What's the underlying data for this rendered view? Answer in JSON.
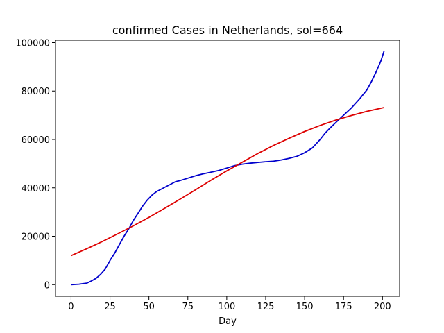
{
  "chart_data": {
    "type": "line",
    "title": "confirmed Cases in Netherlands, sol=664",
    "xlabel": "Day",
    "ylabel": "",
    "xlim": [
      -10,
      211
    ],
    "ylim": [
      -4800,
      101000
    ],
    "xticks": [
      0,
      25,
      50,
      75,
      100,
      125,
      150,
      175,
      200
    ],
    "yticks": [
      0,
      20000,
      40000,
      60000,
      80000,
      100000
    ],
    "grid": false,
    "series": [
      {
        "color": "#0000cc",
        "x": [
          0,
          5,
          10,
          13,
          16,
          19,
          22,
          25,
          28,
          31,
          34,
          37,
          40,
          43,
          46,
          49,
          52,
          55,
          58,
          61,
          64,
          67,
          70,
          75,
          80,
          85,
          90,
          95,
          100,
          105,
          110,
          115,
          120,
          125,
          130,
          135,
          140,
          145,
          150,
          155,
          160,
          163,
          166,
          170,
          175,
          180,
          185,
          190,
          193,
          196,
          199,
          201
        ],
        "y": [
          0,
          200,
          600,
          1500,
          2600,
          4300,
          6500,
          10000,
          13000,
          16500,
          20000,
          23000,
          26500,
          29500,
          32500,
          35000,
          37000,
          38500,
          39500,
          40500,
          41500,
          42500,
          43000,
          44000,
          45000,
          45800,
          46500,
          47200,
          48200,
          49200,
          49800,
          50200,
          50500,
          50800,
          51000,
          51500,
          52200,
          53000,
          54500,
          56500,
          60000,
          62500,
          64500,
          67000,
          70000,
          73000,
          76500,
          80500,
          84000,
          88000,
          92500,
          96500
        ]
      },
      {
        "color": "#dd0000",
        "x": [
          0,
          10,
          20,
          30,
          40,
          50,
          60,
          70,
          80,
          90,
          100,
          110,
          120,
          130,
          140,
          150,
          160,
          170,
          180,
          190,
          201
        ],
        "y": [
          12000,
          14800,
          17800,
          21000,
          24300,
          27800,
          31500,
          35300,
          39200,
          43200,
          47000,
          50600,
          54200,
          57500,
          60500,
          63300,
          65800,
          68000,
          69900,
          71600,
          73200
        ]
      }
    ]
  }
}
